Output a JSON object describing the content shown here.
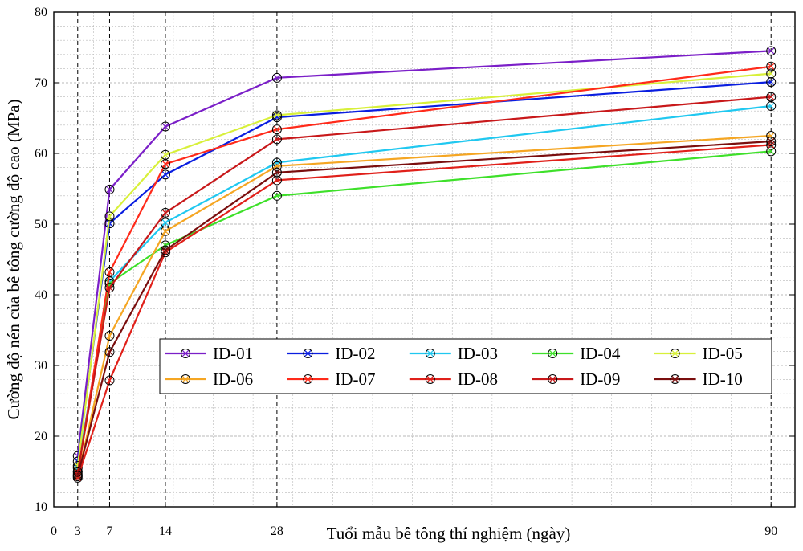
{
  "chart_data": {
    "type": "line",
    "xlabel": "Tuổi mẫu bê tông thí nghiệm (ngày)",
    "ylabel": "Cường độ nén của bê tông cường độ cao (MPa)",
    "xlim": [
      0,
      93
    ],
    "ylim": [
      10,
      80
    ],
    "x_ticks": [
      0,
      3,
      7,
      14,
      28,
      90
    ],
    "x_tick_labels": [
      "0",
      "3",
      "7",
      "14",
      "28",
      "90"
    ],
    "y_ticks": [
      10,
      20,
      30,
      40,
      50,
      60,
      70,
      80
    ],
    "y_tick_labels": [
      "10",
      "20",
      "30",
      "40",
      "50",
      "60",
      "70",
      "80"
    ],
    "vertical_dashed_at": [
      3,
      7,
      14,
      28,
      90
    ],
    "grid": true,
    "legend_position": "center-right",
    "x": [
      3,
      7,
      14,
      28,
      90
    ],
    "series": [
      {
        "name": "ID-01",
        "color": "#7b1fc8",
        "values": [
          17.2,
          54.9,
          63.8,
          70.7,
          74.5
        ]
      },
      {
        "name": "ID-02",
        "color": "#0a1ee0",
        "values": [
          16.4,
          50.1,
          57.0,
          65.1,
          70.1
        ]
      },
      {
        "name": "ID-03",
        "color": "#20c8f0",
        "values": [
          15.5,
          41.9,
          50.2,
          58.7,
          66.7
        ]
      },
      {
        "name": "ID-04",
        "color": "#3ee02a",
        "values": [
          15.0,
          41.6,
          47.0,
          54.0,
          60.3
        ]
      },
      {
        "name": "ID-05",
        "color": "#d8f03a",
        "values": [
          15.8,
          51.1,
          59.8,
          65.4,
          71.3
        ]
      },
      {
        "name": "ID-06",
        "color": "#f5a623",
        "values": [
          14.3,
          34.2,
          49.0,
          58.2,
          62.5
        ]
      },
      {
        "name": "ID-07",
        "color": "#ff2a1a",
        "values": [
          14.6,
          43.2,
          58.5,
          63.4,
          72.3
        ]
      },
      {
        "name": "ID-08",
        "color": "#e0201a",
        "values": [
          14.1,
          27.9,
          46.0,
          56.2,
          61.2
        ]
      },
      {
        "name": "ID-09",
        "color": "#c8181a",
        "values": [
          14.9,
          41.0,
          51.6,
          62.0,
          68.0
        ]
      },
      {
        "name": "ID-10",
        "color": "#7a0e0e",
        "values": [
          14.4,
          31.9,
          46.3,
          57.3,
          61.7
        ]
      }
    ]
  },
  "colors": {
    "axis": "#000000",
    "grid": "#b8b8b8",
    "marker_stroke": "#000000"
  }
}
